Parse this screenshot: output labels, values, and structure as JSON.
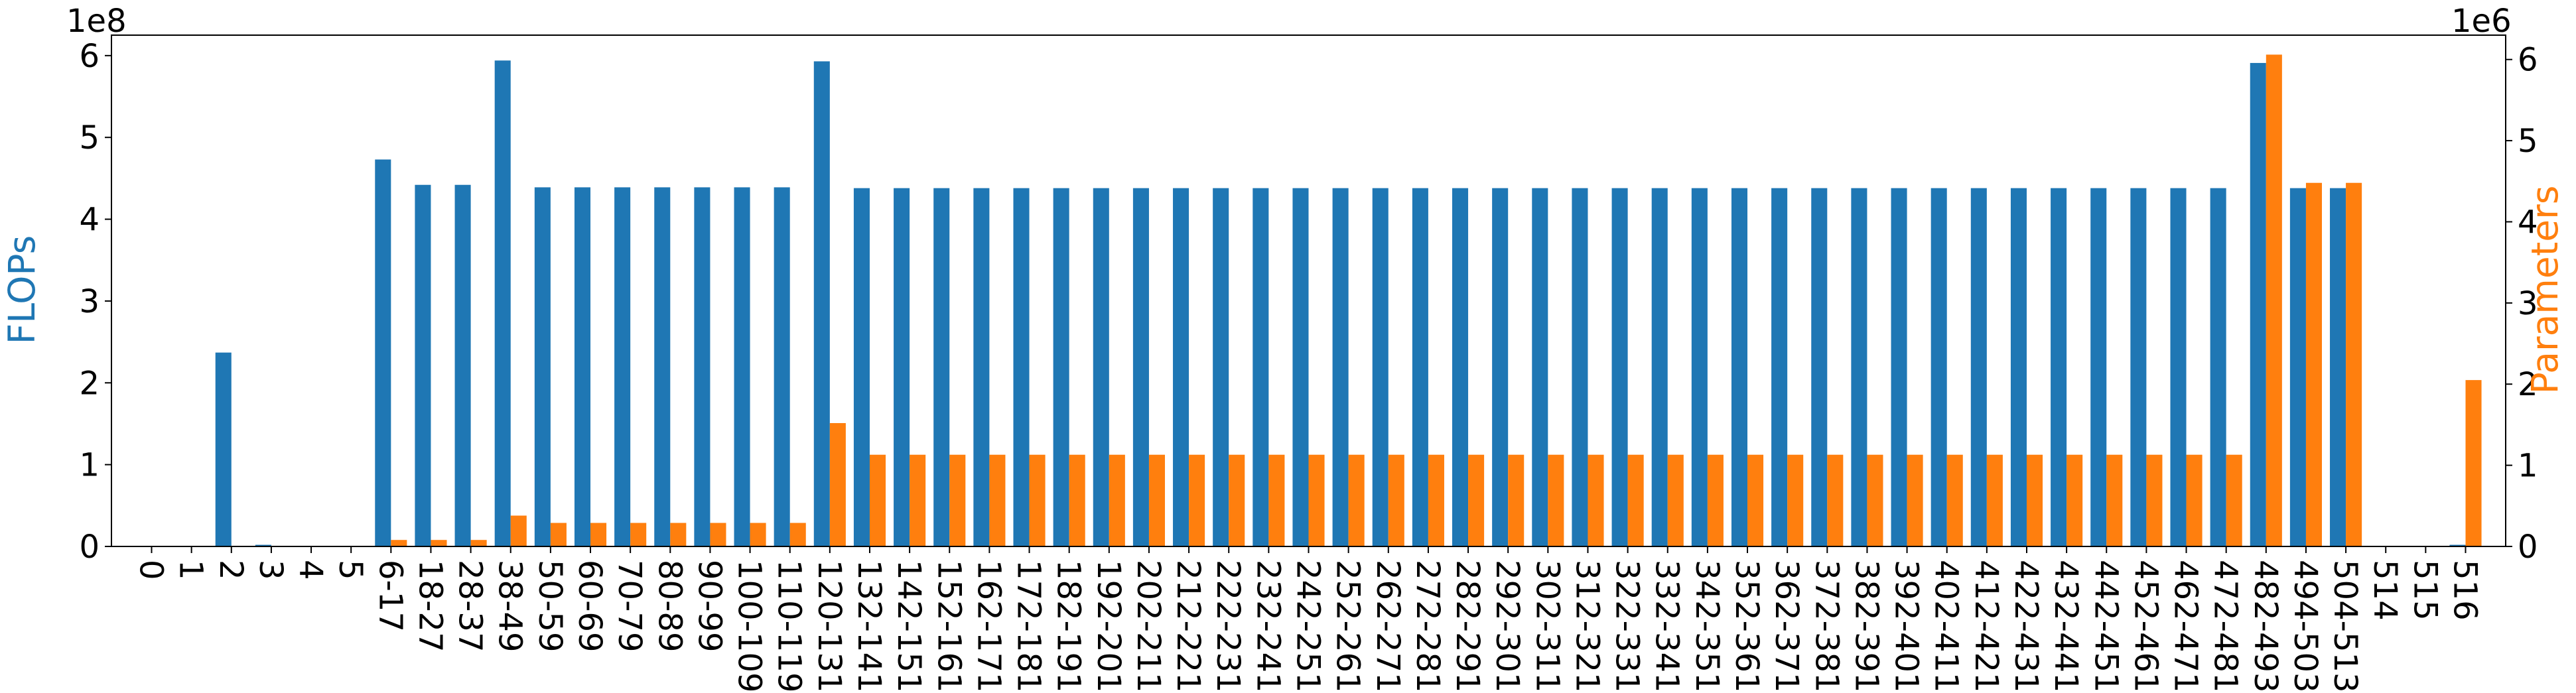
{
  "chart_data": {
    "type": "bar",
    "categories": [
      "0",
      "1",
      "2",
      "3",
      "4",
      "5",
      "6-17",
      "18-27",
      "28-37",
      "38-49",
      "50-59",
      "60-69",
      "70-79",
      "80-89",
      "90-99",
      "100-109",
      "110-119",
      "120-131",
      "132-141",
      "142-151",
      "152-161",
      "162-171",
      "172-181",
      "182-191",
      "192-201",
      "202-211",
      "212-221",
      "222-231",
      "232-241",
      "242-251",
      "252-261",
      "262-271",
      "272-281",
      "282-291",
      "292-301",
      "302-311",
      "312-321",
      "322-331",
      "332-341",
      "342-351",
      "352-361",
      "362-371",
      "372-381",
      "382-391",
      "392-401",
      "402-411",
      "412-421",
      "422-431",
      "432-441",
      "442-451",
      "452-461",
      "462-471",
      "472-481",
      "482-493",
      "494-503",
      "504-513",
      "514",
      "515",
      "516"
    ],
    "series": [
      {
        "name": "FLOPs",
        "axis": "left",
        "color": "#1f77b4",
        "values": [
          0,
          0,
          237000000,
          2000000,
          0,
          0,
          473000000,
          442000000,
          442000000,
          594000000,
          439000000,
          439000000,
          439000000,
          439000000,
          439000000,
          439000000,
          439000000,
          593000000,
          438000000,
          438000000,
          438000000,
          438000000,
          438000000,
          438000000,
          438000000,
          438000000,
          438000000,
          438000000,
          438000000,
          438000000,
          438000000,
          438000000,
          438000000,
          438000000,
          438000000,
          438000000,
          438000000,
          438000000,
          438000000,
          438000000,
          438000000,
          438000000,
          438000000,
          438000000,
          438000000,
          438000000,
          438000000,
          438000000,
          438000000,
          438000000,
          438000000,
          438000000,
          438000000,
          591000000,
          438000000,
          438000000,
          0,
          0,
          2000000
        ]
      },
      {
        "name": "Parameters",
        "axis": "right",
        "color": "#ff7f0e",
        "values": [
          0,
          0,
          0,
          0,
          0,
          0,
          80000,
          80000,
          80000,
          380000,
          290000,
          290000,
          290000,
          290000,
          290000,
          290000,
          290000,
          1520000,
          1130000,
          1130000,
          1130000,
          1130000,
          1130000,
          1130000,
          1130000,
          1130000,
          1130000,
          1130000,
          1130000,
          1130000,
          1130000,
          1130000,
          1130000,
          1130000,
          1130000,
          1130000,
          1130000,
          1130000,
          1130000,
          1130000,
          1130000,
          1130000,
          1130000,
          1130000,
          1130000,
          1130000,
          1130000,
          1130000,
          1130000,
          1130000,
          1130000,
          1130000,
          1130000,
          6060000,
          4480000,
          4480000,
          0,
          0,
          2050000
        ]
      }
    ],
    "ylabel": "FLOPs",
    "ylabel_right": "Parameters",
    "ylim": [
      0,
      625000000
    ],
    "ylim_right": [
      0,
      6300000
    ],
    "yticks": [
      "0",
      "1",
      "2",
      "3",
      "4",
      "5",
      "6"
    ],
    "yticks_right": [
      "0",
      "1",
      "2",
      "3",
      "4",
      "5",
      "6"
    ],
    "y_offset_label": "1e8",
    "y_offset_label_right": "1e6",
    "grid": false,
    "legend": "none"
  }
}
